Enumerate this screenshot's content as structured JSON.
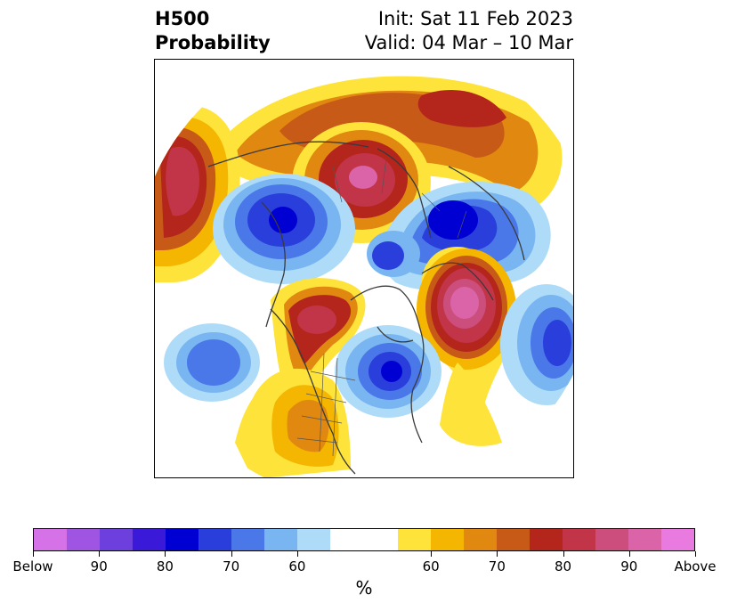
{
  "title": {
    "left_line1": "H500",
    "left_line2": "Probability",
    "right_line1": "Init: Sat 11 Feb 2023",
    "right_line2": "Valid: 04 Mar – 10 Mar"
  },
  "map": {
    "projection": "north-polar-stereographic",
    "features": [
      "coastlines",
      "country-borders",
      "us-state-borders",
      "canada-province-borders"
    ],
    "anomalies": [
      {
        "region": "Gulf of Alaska / NE Pacific",
        "category": "Above",
        "peak": "85"
      },
      {
        "region": "Western Russia / Scandinavia",
        "category": "Above",
        "peak": "Above"
      },
      {
        "region": "Central Asia",
        "category": "Above",
        "peak": "85"
      },
      {
        "region": "Far East Russia",
        "category": "Above",
        "peak": "80"
      },
      {
        "region": "Northern Europe / Arctic",
        "category": "Above",
        "peak": "75"
      },
      {
        "region": "Western United States",
        "category": "Above",
        "peak": "65"
      },
      {
        "region": "Eastern Canada / Hudson Bay",
        "category": "Below",
        "peak": "85"
      },
      {
        "region": "East Asia / Japan",
        "category": "Below",
        "peak": "85"
      },
      {
        "region": "Eastern Europe / Mediterranean",
        "category": "Below",
        "peak": "75"
      },
      {
        "region": "North Pacific",
        "category": "Below",
        "peak": "65"
      },
      {
        "region": "North Atlantic",
        "category": "Below",
        "peak": "75"
      }
    ]
  },
  "colorbar": {
    "unit": "%",
    "colors": [
      "#d672e8",
      "#9f55e2",
      "#6d3fdc",
      "#3a1ad8",
      "#0000d2",
      "#2a3edc",
      "#4a78e8",
      "#79b5f1",
      "#aedcf8",
      "#ffffff",
      "#fee33a",
      "#f4b600",
      "#e08810",
      "#c85a18",
      "#b4251c",
      "#c23448",
      "#cc4e7c",
      "#db64a8",
      "#e87ae0"
    ],
    "ticks": [
      {
        "label": "Below"
      },
      {
        "label": "90"
      },
      {
        "label": "80"
      },
      {
        "label": "70"
      },
      {
        "label": "60"
      },
      {
        "label": "60"
      },
      {
        "label": "70"
      },
      {
        "label": "80"
      },
      {
        "label": "90"
      },
      {
        "label": "Above"
      }
    ]
  }
}
